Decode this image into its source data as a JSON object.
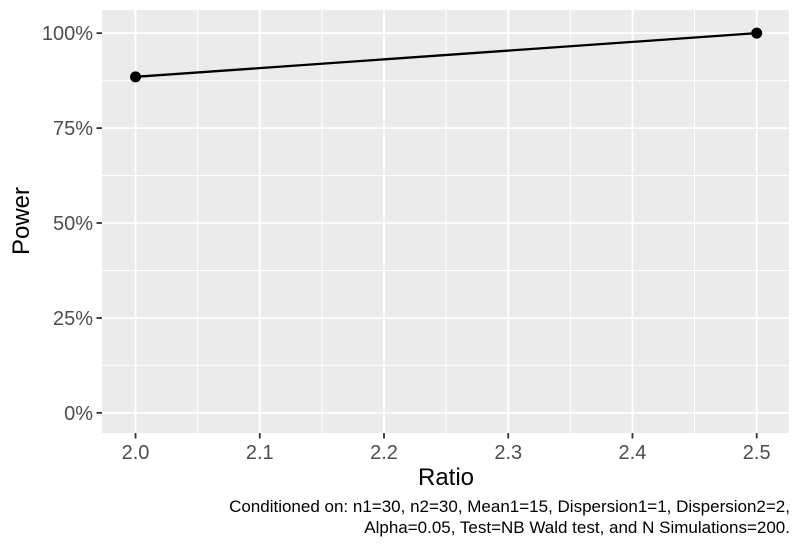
{
  "figure": {
    "background": "#FFFFFF",
    "panel_background": "#EBEBEB",
    "gridline_color": "#FFFFFF",
    "tick_mark_color": "#333333",
    "tick_label_color": "#4D4D4D",
    "axis_title_color": "#000000",
    "line_color": "#000000",
    "point_color": "#000000"
  },
  "chart_data": {
    "type": "line",
    "title": "",
    "xlabel": "Ratio",
    "ylabel": "Power",
    "x": [
      2.0,
      2.5
    ],
    "series": [
      {
        "name": "Power",
        "values": [
          88.5,
          100
        ]
      }
    ],
    "y_unit": "%",
    "x_ticks": {
      "values": [
        2.0,
        2.1,
        2.2,
        2.3,
        2.4,
        2.5
      ],
      "labels": [
        "2.0",
        "2.1",
        "2.2",
        "2.3",
        "2.4",
        "2.5"
      ]
    },
    "y_ticks": {
      "values": [
        0,
        25,
        50,
        75,
        100
      ],
      "labels": [
        "0%",
        "25%",
        "50%",
        "75%",
        "100%"
      ]
    },
    "xlim": [
      1.973,
      2.526
    ],
    "ylim": [
      -5.3,
      106.1
    ],
    "grid": "major+minor",
    "legend": "none",
    "points_shown": true
  },
  "caption": {
    "line1": "Conditioned on: n1=30, n2=30, Mean1=15, Dispersion1=1, Dispersion2=2,",
    "line2": "Alpha=0.05, Test=NB Wald test, and N Simulations=200."
  }
}
